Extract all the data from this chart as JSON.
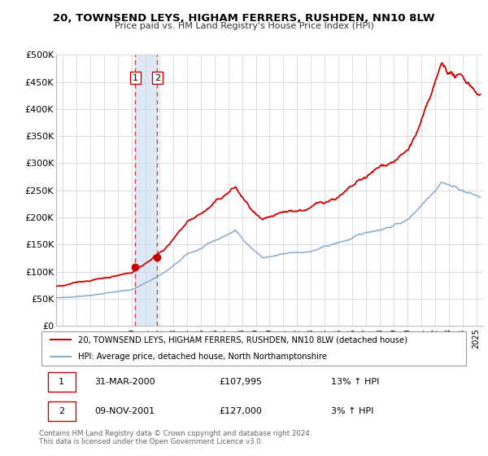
{
  "title1": "20, TOWNSEND LEYS, HIGHAM FERRERS, RUSHDEN, NN10 8LW",
  "title2": "Price paid vs. HM Land Registry's House Price Index (HPI)",
  "ylabel_ticks": [
    "£0",
    "£50K",
    "£100K",
    "£150K",
    "£200K",
    "£250K",
    "£300K",
    "£350K",
    "£400K",
    "£450K",
    "£500K"
  ],
  "ytick_values": [
    0,
    50000,
    100000,
    150000,
    200000,
    250000,
    300000,
    350000,
    400000,
    450000,
    500000
  ],
  "xlim_start": 1994.5,
  "xlim_end": 2025.5,
  "ylim_min": 0,
  "ylim_max": 500000,
  "transaction1": {
    "date_year": 2000.25,
    "price": 107995,
    "label": "1"
  },
  "transaction2": {
    "date_year": 2001.85,
    "price": 127000,
    "label": "2"
  },
  "red_color": "#cc0000",
  "blue_color": "#88aacc",
  "vline_color": "#cc0000",
  "shade_color": "#c8d8ee",
  "legend1": "20, TOWNSEND LEYS, HIGHAM FERRERS, RUSHDEN, NN10 8LW (detached house)",
  "legend2": "HPI: Average price, detached house, North Northamptonshire",
  "table_row1": [
    "1",
    "31-MAR-2000",
    "£107,995",
    "13% ↑ HPI"
  ],
  "table_row2": [
    "2",
    "09-NOV-2001",
    "£127,000",
    "3% ↑ HPI"
  ],
  "footnote": "Contains HM Land Registry data © Crown copyright and database right 2024.\nThis data is licensed under the Open Government Licence v3.0.",
  "background_color": "#ffffff",
  "plot_bg_color": "#ffffff",
  "grid_color": "#dddddd"
}
